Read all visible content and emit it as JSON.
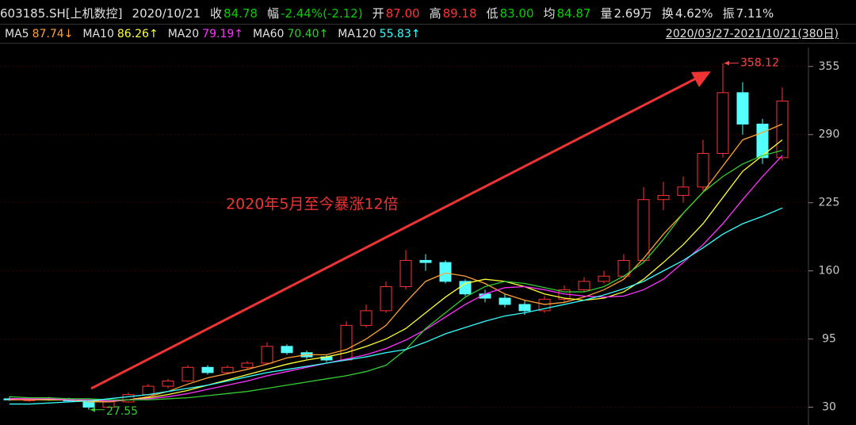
{
  "header": {
    "items": [
      {
        "text": "603185.SH[上机数控]"
      },
      {
        "text": "2020/10/21"
      },
      {
        "label": "收",
        "value": "84.78",
        "color": "#00d000"
      },
      {
        "label": "幅",
        "value": "-2.44%(-2.12)",
        "color": "#00d000"
      },
      {
        "label": "开",
        "value": "87.00",
        "color": "#ff3333"
      },
      {
        "label": "高",
        "value": "89.18",
        "color": "#ff3333"
      },
      {
        "label": "低",
        "value": "83.00",
        "color": "#00d000"
      },
      {
        "label": "均",
        "value": "84.87",
        "color": "#00d000"
      },
      {
        "label": "量",
        "value": "2.69万",
        "color": "#e0e0e0"
      },
      {
        "label": "换",
        "value": "4.62%",
        "color": "#e0e0e0"
      },
      {
        "label": "振",
        "value": "7.11%",
        "color": "#e0e0e0"
      }
    ]
  },
  "chart_data": {
    "type": "candlestick",
    "date_range": "2020/03/27-2021/10/21(380日)",
    "annotation": "2020年5月至今暴涨12倍",
    "max_marker": 358.12,
    "min_marker": 27.55,
    "up_color": "#ff3232",
    "down_color": "#54ffff",
    "ylim": [
      13,
      373
    ],
    "yticks": [
      30,
      95,
      160,
      225,
      290,
      355
    ],
    "grid": true,
    "open": [
      38,
      37,
      37,
      38,
      36,
      30,
      35,
      42,
      50,
      55,
      68,
      63,
      68,
      72,
      88,
      82,
      78,
      75,
      108,
      122,
      145,
      170,
      168,
      150,
      138,
      134,
      128,
      122,
      133,
      142,
      150,
      155,
      170,
      228,
      232,
      240,
      272,
      330,
      300,
      268
    ],
    "high": [
      40,
      39,
      40,
      39,
      37,
      36,
      44,
      52,
      57,
      70,
      70,
      70,
      74,
      92,
      90,
      84,
      80,
      112,
      128,
      150,
      180,
      176,
      170,
      152,
      142,
      138,
      132,
      136,
      146,
      154,
      160,
      176,
      240,
      245,
      250,
      285,
      358.12,
      340,
      305,
      335
    ],
    "low": [
      36,
      35,
      36,
      35,
      27.55,
      29,
      34,
      41,
      48,
      54,
      61,
      62,
      66,
      71,
      80,
      76,
      73,
      74,
      106,
      120,
      142,
      160,
      148,
      136,
      130,
      125,
      118,
      120,
      130,
      140,
      148,
      153,
      168,
      218,
      225,
      236,
      268,
      290,
      262,
      265
    ],
    "close": [
      37,
      37,
      38,
      36,
      30,
      35,
      42,
      50,
      55,
      68,
      63,
      68,
      72,
      88,
      82,
      78,
      75,
      108,
      122,
      145,
      170,
      168,
      150,
      138,
      134,
      128,
      122,
      133,
      142,
      150,
      155,
      170,
      228,
      232,
      240,
      272,
      330,
      300,
      268,
      322
    ],
    "series": [
      {
        "name": "MA5",
        "legend_value": "87.74↓",
        "color": "#ffa033",
        "values": [
          37,
          37,
          37,
          37,
          35,
          35,
          37,
          40,
          45,
          52,
          58,
          62,
          66,
          71,
          77,
          80,
          80,
          85,
          95,
          108,
          130,
          150,
          158,
          155,
          148,
          138,
          132,
          128,
          130,
          135,
          142,
          152,
          172,
          195,
          215,
          235,
          260,
          285,
          292,
          300
        ]
      },
      {
        "name": "MA10",
        "legend_value": "86.26↑",
        "color": "#ffff33",
        "values": [
          38,
          38,
          37,
          37,
          36,
          36,
          37,
          39,
          42,
          46,
          51,
          56,
          61,
          66,
          71,
          75,
          78,
          82,
          88,
          95,
          105,
          120,
          135,
          148,
          152,
          150,
          145,
          138,
          134,
          132,
          134,
          140,
          152,
          168,
          185,
          205,
          230,
          255,
          270,
          285
        ]
      },
      {
        "name": "MA20",
        "legend_value": "79.19↑",
        "color": "#ff33ff",
        "values": [
          38,
          38,
          38,
          37,
          37,
          36,
          37,
          38,
          40,
          43,
          47,
          51,
          55,
          60,
          64,
          68,
          72,
          76,
          80,
          86,
          94,
          104,
          116,
          128,
          138,
          144,
          145,
          142,
          138,
          136,
          135,
          136,
          142,
          152,
          168,
          185,
          205,
          228,
          250,
          270
        ]
      },
      {
        "name": "MA60",
        "legend_value": "70.40↑",
        "color": "#33cc33",
        "values": [
          40,
          39,
          39,
          38,
          38,
          37,
          37,
          37,
          38,
          39,
          41,
          43,
          45,
          48,
          51,
          54,
          57,
          60,
          64,
          70,
          85,
          105,
          120,
          135,
          145,
          150,
          148,
          144,
          140,
          140,
          145,
          155,
          168,
          190,
          215,
          235,
          250,
          262,
          270,
          275
        ]
      },
      {
        "name": "MA120",
        "legend_value": "55.83↑",
        "color": "#33ffff",
        "values": [
          33,
          33,
          34,
          35,
          36,
          38,
          40,
          42,
          45,
          48,
          51,
          55,
          59,
          63,
          66,
          69,
          72,
          75,
          78,
          82,
          85,
          92,
          100,
          106,
          112,
          117,
          120,
          124,
          128,
          132,
          137,
          143,
          150,
          160,
          170,
          182,
          195,
          205,
          212,
          220
        ]
      }
    ]
  }
}
